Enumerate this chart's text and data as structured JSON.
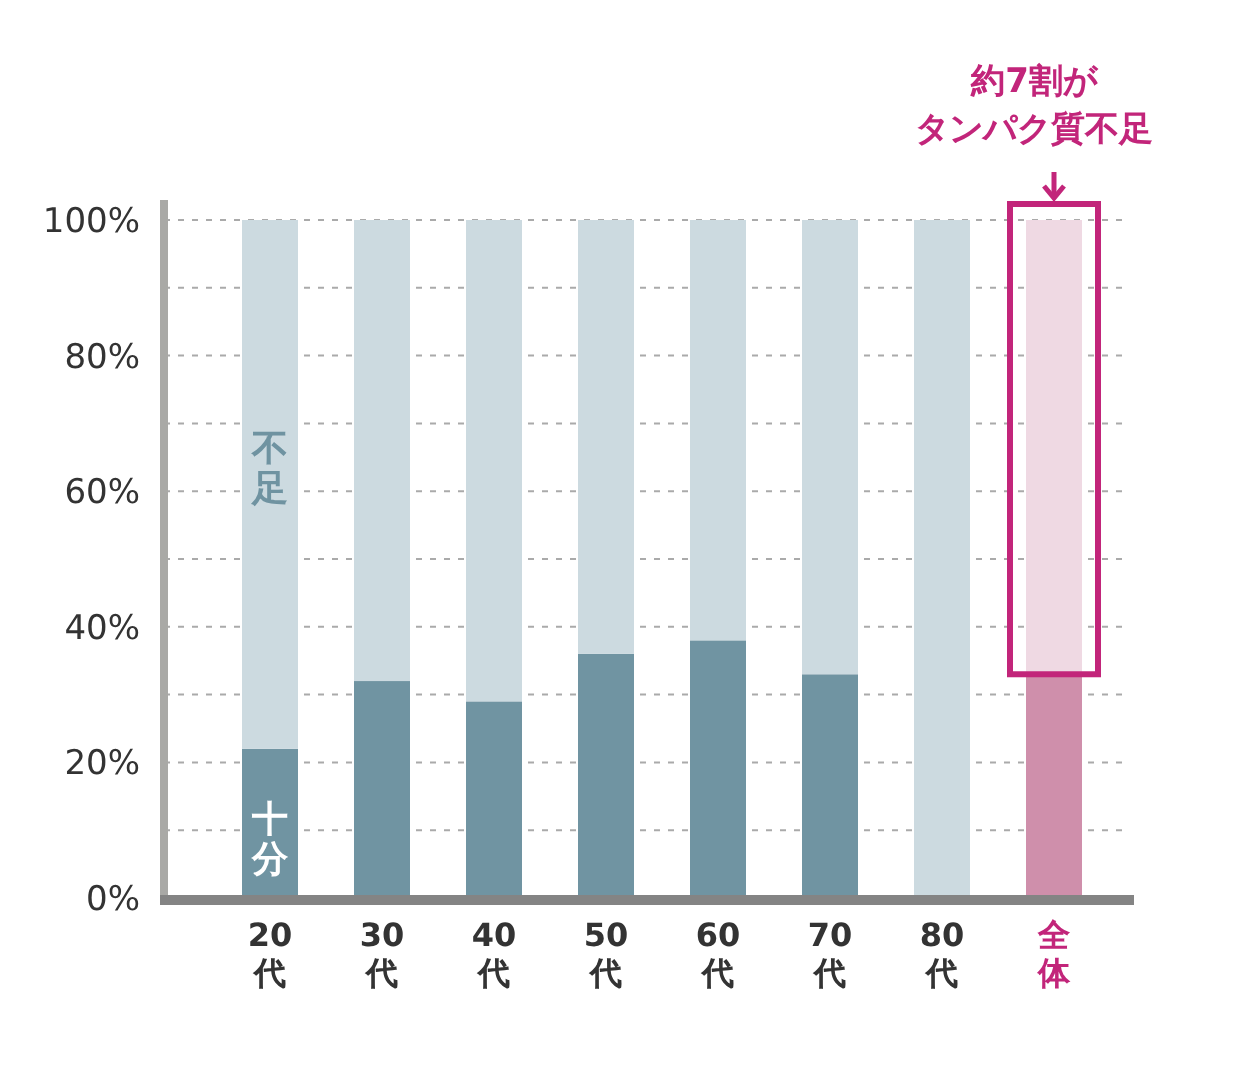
{
  "chart_data": {
    "type": "bar",
    "stacked": true,
    "categories": [
      "20代",
      "30代",
      "40代",
      "50代",
      "60代",
      "70代",
      "80代",
      "全体"
    ],
    "series": [
      {
        "name": "十分",
        "colors": [
          "#7094a2",
          "#7094a2",
          "#7094a2",
          "#7094a2",
          "#7094a2",
          "#7094a2",
          "#7094a2",
          "#cf8fab"
        ],
        "values": [
          22,
          32,
          29,
          36,
          38,
          33,
          0,
          33
        ]
      },
      {
        "name": "不足",
        "colors": [
          "#ccdae0",
          "#ccdae0",
          "#ccdae0",
          "#ccdae0",
          "#ccdae0",
          "#ccdae0",
          "#ccdae0",
          "#efd9e3"
        ],
        "values": [
          78,
          68,
          71,
          64,
          62,
          67,
          100,
          67
        ]
      }
    ],
    "ylim": [
      0,
      100
    ],
    "yticks": [
      {
        "value": 0,
        "label": "0%"
      },
      {
        "value": 10,
        "label": null
      },
      {
        "value": 20,
        "label": "20%"
      },
      {
        "value": 30,
        "label": null
      },
      {
        "value": 40,
        "label": "40%"
      },
      {
        "value": 50,
        "label": null
      },
      {
        "value": 60,
        "label": "60%"
      },
      {
        "value": 70,
        "label": null
      },
      {
        "value": 80,
        "label": "80%"
      },
      {
        "value": 90,
        "label": null
      },
      {
        "value": 100,
        "label": "100%"
      }
    ],
    "grid": "y",
    "annotations": [
      "約7割が",
      "タンパク質不足"
    ]
  }
}
